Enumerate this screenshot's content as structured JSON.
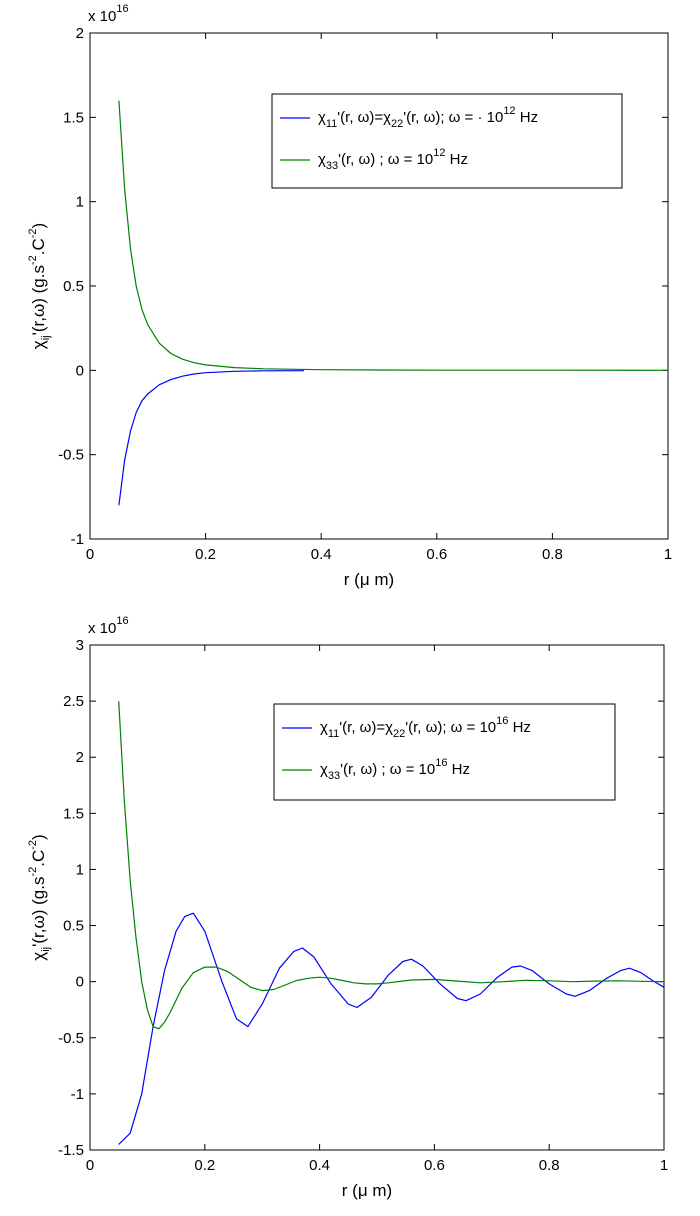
{
  "chart_data": [
    {
      "type": "line",
      "xlabel": "r (μ m)",
      "ylabel": "χij'(r,ω)   (g.s-2.C-2)",
      "xlim": [
        0,
        1
      ],
      "ylim": [
        -1,
        2
      ],
      "x_ticks": [
        "0",
        "0.2",
        "0.4",
        "0.6",
        "0.8",
        "1"
      ],
      "y_ticks": [
        "-1",
        "-0.5",
        "0",
        "0.5",
        "1",
        "1.5",
        "2"
      ],
      "y_exponent": "x 10",
      "y_exponent_power": "16",
      "legend_position": "top-right",
      "grid": false,
      "series": [
        {
          "legend": "χ11'(r, ω)=χ22'(r, ω); ω = · 10^12 Hz",
          "color": "#0000ff",
          "x": [
            0.05,
            0.06,
            0.07,
            0.08,
            0.09,
            0.1,
            0.12,
            0.14,
            0.16,
            0.18,
            0.2,
            0.25,
            0.3,
            0.37
          ],
          "y": [
            -0.8,
            -0.53,
            -0.36,
            -0.25,
            -0.18,
            -0.14,
            -0.085,
            -0.055,
            -0.035,
            -0.022,
            -0.014,
            -0.006,
            -0.003,
            -0.002
          ]
        },
        {
          "legend": "χ33'(r, ω) ; ω = 10^12 Hz",
          "color": "#008000",
          "x": [
            0.05,
            0.06,
            0.07,
            0.08,
            0.09,
            0.1,
            0.12,
            0.14,
            0.16,
            0.18,
            0.2,
            0.25,
            0.3,
            0.4,
            0.5,
            0.6,
            0.8,
            1.0
          ],
          "y": [
            1.6,
            1.07,
            0.72,
            0.5,
            0.36,
            0.27,
            0.16,
            0.1,
            0.066,
            0.045,
            0.032,
            0.016,
            0.009,
            0.004,
            0.002,
            0.001,
            0.0005,
            0.0003
          ]
        }
      ]
    },
    {
      "type": "line",
      "xlabel": "r (μ m)",
      "ylabel": "χij'(r,ω)   (g.s-2.C-2)",
      "xlim": [
        0,
        1
      ],
      "ylim": [
        -1.5,
        3
      ],
      "x_ticks": [
        "0",
        "0.2",
        "0.4",
        "0.6",
        "0.8",
        "1"
      ],
      "y_ticks": [
        "-1.5",
        "-1",
        "-0.5",
        "0",
        "0.5",
        "1",
        "1.5",
        "2",
        "2.5",
        "3"
      ],
      "y_exponent": "x 10",
      "y_exponent_power": "16",
      "legend_position": "top-right",
      "grid": false,
      "series": [
        {
          "legend": "χ11'(r, ω)=χ22'(r, ω); ω = 10^16 Hz",
          "color": "#0000ff",
          "x": [
            0.05,
            0.07,
            0.09,
            0.11,
            0.13,
            0.15,
            0.165,
            0.18,
            0.2,
            0.23,
            0.255,
            0.275,
            0.3,
            0.33,
            0.355,
            0.37,
            0.39,
            0.42,
            0.45,
            0.465,
            0.49,
            0.52,
            0.545,
            0.56,
            0.58,
            0.61,
            0.64,
            0.655,
            0.68,
            0.71,
            0.735,
            0.75,
            0.77,
            0.8,
            0.83,
            0.845,
            0.87,
            0.9,
            0.925,
            0.94,
            0.96,
            0.98,
            1.0
          ],
          "y": [
            -1.45,
            -1.35,
            -1.0,
            -0.4,
            0.1,
            0.45,
            0.58,
            0.61,
            0.45,
            0.0,
            -0.33,
            -0.4,
            -0.2,
            0.12,
            0.27,
            0.3,
            0.22,
            -0.02,
            -0.2,
            -0.23,
            -0.14,
            0.06,
            0.18,
            0.2,
            0.14,
            -0.02,
            -0.15,
            -0.17,
            -0.11,
            0.04,
            0.13,
            0.14,
            0.1,
            -0.02,
            -0.11,
            -0.13,
            -0.08,
            0.03,
            0.1,
            0.12,
            0.08,
            0.01,
            -0.05
          ]
        },
        {
          "legend": "χ33'(r, ω) ; ω = 10^16 Hz",
          "color": "#008000",
          "x": [
            0.05,
            0.06,
            0.07,
            0.08,
            0.09,
            0.1,
            0.11,
            0.12,
            0.13,
            0.14,
            0.16,
            0.18,
            0.2,
            0.22,
            0.24,
            0.26,
            0.28,
            0.3,
            0.32,
            0.34,
            0.36,
            0.38,
            0.4,
            0.42,
            0.44,
            0.46,
            0.48,
            0.5,
            0.52,
            0.56,
            0.6,
            0.64,
            0.68,
            0.72,
            0.76,
            0.8,
            0.84,
            0.88,
            0.92,
            0.96,
            1.0
          ],
          "y": [
            2.5,
            1.6,
            0.9,
            0.4,
            0.0,
            -0.25,
            -0.4,
            -0.42,
            -0.36,
            -0.27,
            -0.06,
            0.08,
            0.13,
            0.13,
            0.09,
            0.02,
            -0.05,
            -0.08,
            -0.07,
            -0.03,
            0.01,
            0.03,
            0.04,
            0.03,
            0.01,
            -0.01,
            -0.02,
            -0.02,
            -0.01,
            0.015,
            0.02,
            0.005,
            -0.01,
            0.0,
            0.012,
            0.008,
            0.0,
            0.005,
            0.008,
            0.003,
            0.0
          ]
        }
      ]
    }
  ]
}
